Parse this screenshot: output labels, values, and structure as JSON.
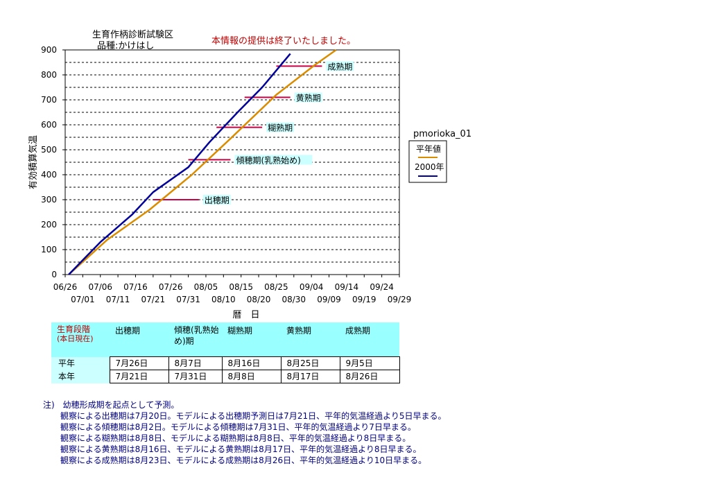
{
  "header": {
    "title": "生育作柄診断試験区",
    "variety": "品種:かけはし",
    "notice": "本情報の提供は終了いたしました。"
  },
  "chart_data": {
    "type": "line",
    "ylabel": "有効積算気温",
    "xlabel": "暦　日",
    "ylim": [
      0,
      900
    ],
    "yticks": [
      0,
      100,
      200,
      300,
      400,
      500,
      600,
      700,
      800,
      900
    ],
    "xrange": [
      "06/26",
      "09/29"
    ],
    "xticks_top": [
      "06/26",
      "07/06",
      "07/16",
      "07/26",
      "08/05",
      "08/15",
      "08/25",
      "09/04",
      "09/14",
      "09/24"
    ],
    "xticks_bottom": [
      "07/01",
      "07/11",
      "07/21",
      "07/31",
      "08/10",
      "08/20",
      "08/30",
      "09/09",
      "09/19",
      "09/29"
    ],
    "grid": "dashed-horizontal",
    "legend": {
      "station": "pmorioka_01",
      "placement": "right"
    },
    "series": [
      {
        "name": "平年値",
        "color": "#d98c00",
        "points": [
          [
            "06/27",
            0
          ],
          [
            "07/08",
            140
          ],
          [
            "07/20",
            260
          ],
          [
            "08/01",
            400
          ],
          [
            "08/12",
            545
          ],
          [
            "08/25",
            720
          ],
          [
            "09/05",
            840
          ],
          [
            "09/11",
            900
          ]
        ]
      },
      {
        "name": "2000年",
        "color": "#000099",
        "points": [
          [
            "06/27",
            0
          ],
          [
            "07/06",
            130
          ],
          [
            "07/15",
            240
          ],
          [
            "07/21",
            330
          ],
          [
            "07/31",
            430
          ],
          [
            "08/06",
            530
          ],
          [
            "08/14",
            650
          ],
          [
            "08/21",
            750
          ],
          [
            "08/29",
            885
          ]
        ]
      }
    ],
    "stages": [
      {
        "label": "出穂期",
        "y": 300,
        "from": "07/21",
        "to": "08/03"
      },
      {
        "label": "傾穂期(乳熟始め)",
        "y": 460,
        "from": "07/31",
        "to": "08/12"
      },
      {
        "label": "糊熟期",
        "y": 590,
        "from": "08/08",
        "to": "08/21"
      },
      {
        "label": "黄熟期",
        "y": 710,
        "from": "08/16",
        "to": "08/29"
      },
      {
        "label": "成熟期",
        "y": 835,
        "from": "08/25",
        "to": "09/07"
      }
    ]
  },
  "table": {
    "corner_label": "生育段階",
    "corner_sub": "(本日現在)",
    "headers": [
      "出穂期",
      "傾穂(乳熟始め)期",
      "糊熟期",
      "黄熟期",
      "成熟期"
    ],
    "rows": [
      {
        "label": "平年",
        "values": [
          "7月26日",
          "8月7日",
          "8月16日",
          "8月25日",
          "9月5日"
        ]
      },
      {
        "label": "本年",
        "values": [
          "7月21日",
          "7月31日",
          "8月8日",
          "8月17日",
          "8月26日"
        ]
      }
    ]
  },
  "notes": [
    "注)　幼穂形成期を起点として予測。",
    "観察による出穂期は7月20日。モデルによる出穂期予測日は7月21日、平年的気温経過より5日早まる。",
    "観察による傾穂期は8月2日。モデルによる傾穂期は7月31日、平年的気温経過より7日早まる。",
    "観察による糊熟期は8月8日、モデルによる糊熟期は8月8日、平年的気温経過より8日早まる。",
    "観察による黄熟期は8月16日、モデルによる黄熟期は8月17日、平年的気温経過より8日早まる。",
    "観察による成熟期は8月23日、モデルによる成熟期は8月26日、平年的気温経過より10日早まる。"
  ]
}
